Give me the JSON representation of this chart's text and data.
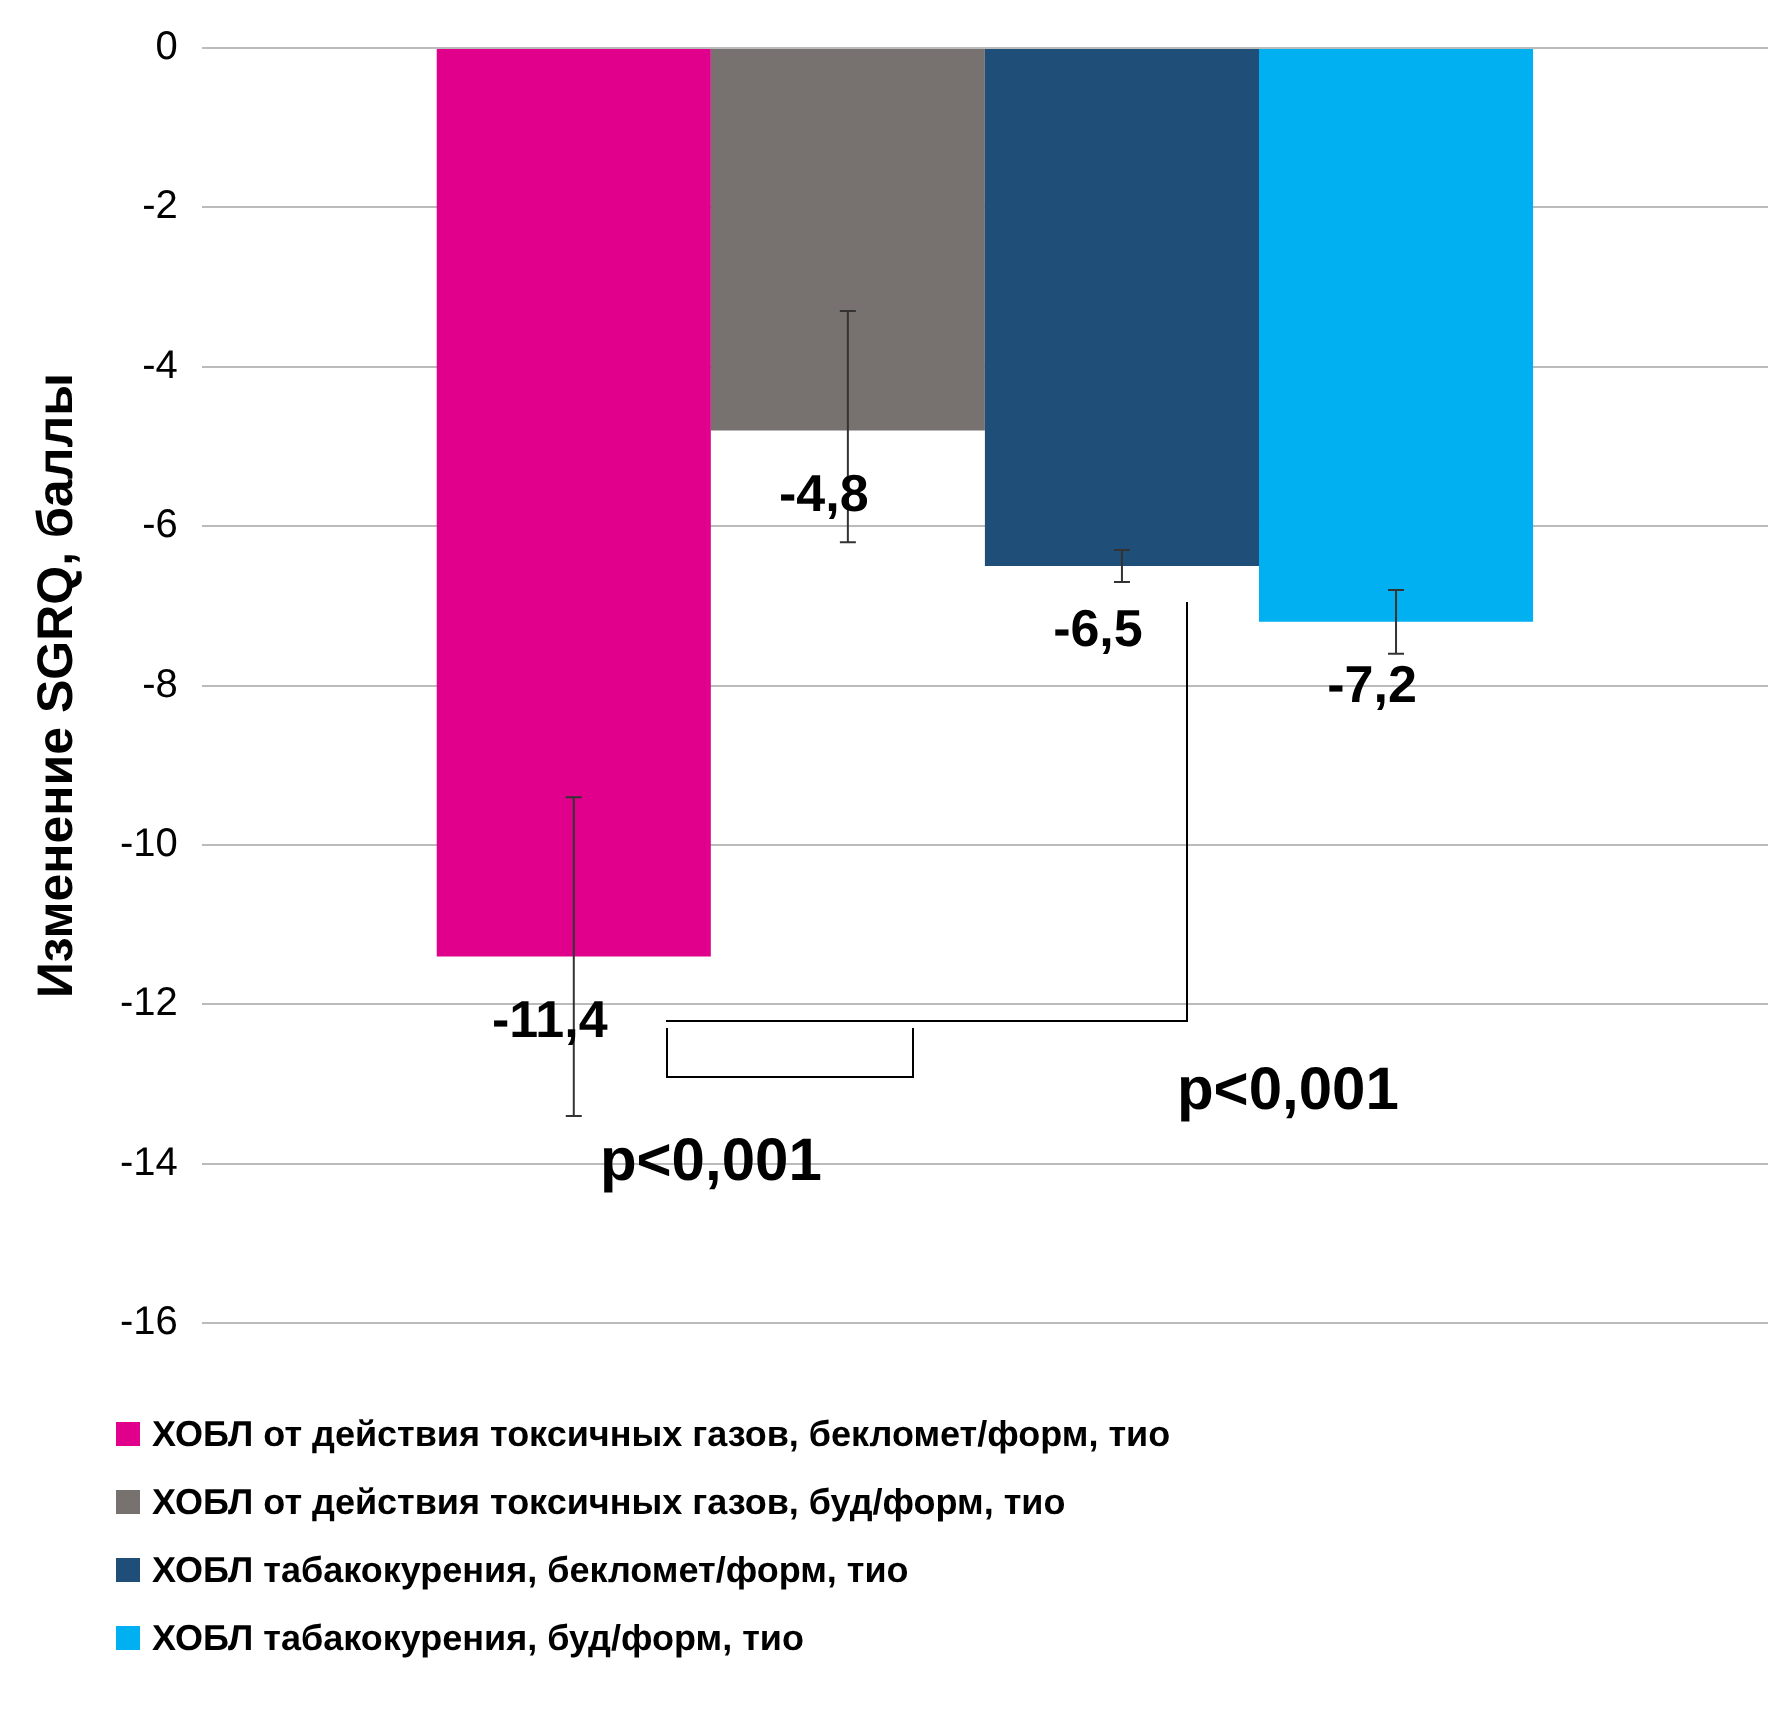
{
  "chart_data": {
    "type": "bar",
    "ylabel": "Изменение SGRQ, баллы",
    "categories": [
      null
    ],
    "series": [
      {
        "name": "ХОБЛ от действия токсичных газов, бекломет/форм, тио",
        "color": "#e0008c",
        "values": [
          -11.4
        ],
        "value_labels": [
          "-11,4"
        ],
        "errors": [
          [
            -13.4,
            -9.4
          ]
        ]
      },
      {
        "name": "ХОБЛ от действия токсичных газов, буд/форм, тио",
        "color": "#77716f",
        "values": [
          -4.8
        ],
        "value_labels": [
          "-4,8"
        ],
        "errors": [
          [
            -6.2,
            -3.3
          ]
        ]
      },
      {
        "name": "ХОБЛ табакокурения, бекломет/форм, тио",
        "color": "#1f4e79",
        "values": [
          -6.5
        ],
        "value_labels": [
          "-6,5"
        ],
        "errors": [
          [
            -6.7,
            -6.3
          ]
        ]
      },
      {
        "name": "ХОБЛ табакокурения, буд/форм, тио",
        "color": "#00b0f0",
        "values": [
          -7.2
        ],
        "value_labels": [
          "-7,2"
        ],
        "errors": [
          [
            -7.6,
            -6.8
          ]
        ]
      }
    ],
    "ylim": [
      -16,
      0
    ],
    "yticks": [
      -16,
      -14,
      -12,
      -10,
      -8,
      -6,
      -4,
      -2,
      0
    ],
    "grid": "y",
    "legend": "bottom",
    "annotations": [
      "p<0,001",
      "p<0,001"
    ]
  }
}
